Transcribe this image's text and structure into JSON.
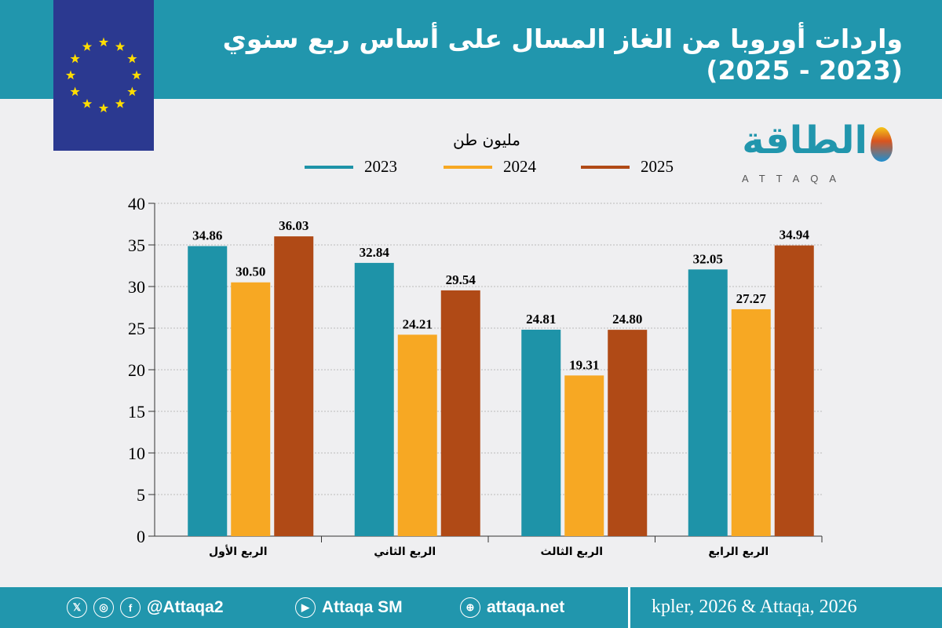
{
  "title": "واردات أوروبا من الغاز المسال على أساس ربع سنوي (2023 - 2025)",
  "logo": {
    "arabic": "الطاقة",
    "latin": "ATTAQA"
  },
  "chart_data": {
    "type": "bar",
    "title": "واردات أوروبا من الغاز المسال على أساس ربع سنوي (2023 - 2025)",
    "ylabel": "مليون طن",
    "ylim": [
      0,
      40
    ],
    "yticks": [
      "0",
      "5",
      "10",
      "15",
      "20",
      "25",
      "30",
      "35",
      "40"
    ],
    "grid": true,
    "legend_position": "top",
    "categories": [
      "الربع الأول",
      "الربع الثاني",
      "الربع الثالث",
      "الربع الرابع"
    ],
    "series": [
      {
        "name": "2023",
        "color": "#1e93a8",
        "values": [
          34.86,
          32.84,
          24.81,
          32.05
        ],
        "labels": [
          "34.86",
          "32.84",
          "24.81",
          "32.05"
        ]
      },
      {
        "name": "2024",
        "color": "#f7a823",
        "values": [
          30.5,
          24.21,
          19.31,
          27.27
        ],
        "labels": [
          "30.50",
          "24.21",
          "19.31",
          "27.27"
        ]
      },
      {
        "name": "2025",
        "color": "#b04a16",
        "values": [
          36.03,
          29.54,
          24.8,
          34.94
        ],
        "labels": [
          "36.03",
          "29.54",
          "24.80",
          "34.94"
        ]
      }
    ]
  },
  "footer": {
    "handle": "@Attaqa2",
    "youtube": "Attaqa SM",
    "website": "attaqa.net",
    "source": "kpler, 2026 & Attaqa, 2026"
  }
}
